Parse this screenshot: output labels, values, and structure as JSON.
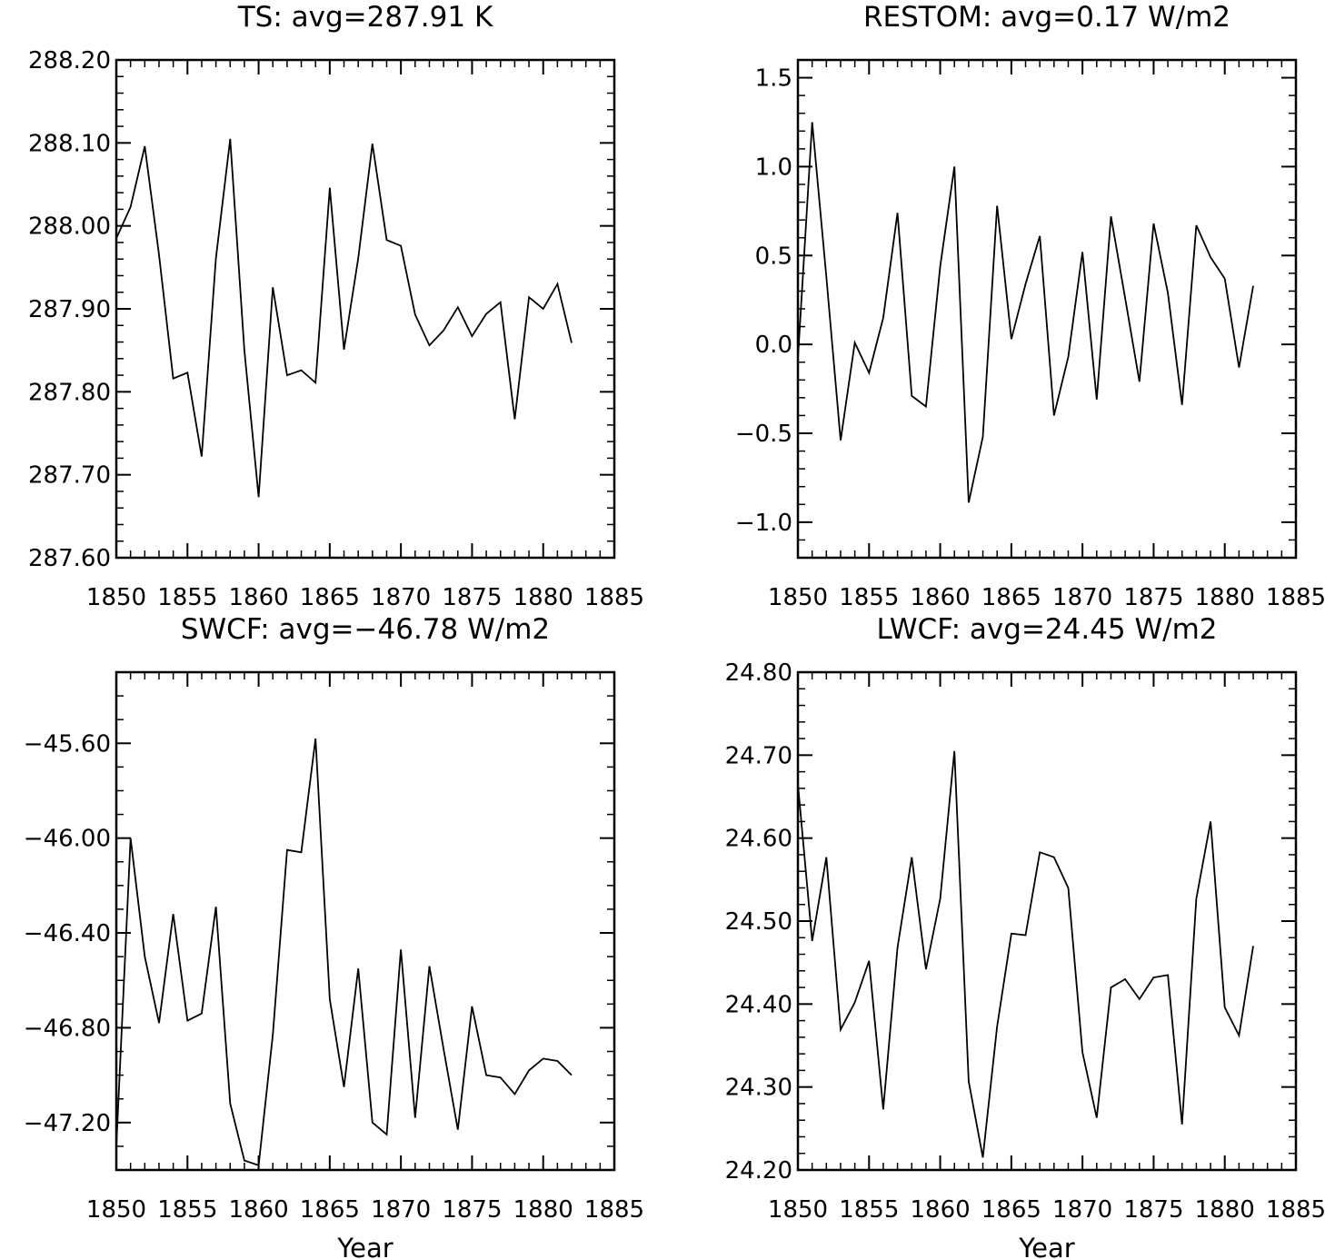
{
  "chart_data": [
    {
      "type": "line",
      "title": "TS: avg=287.91 K",
      "xlabel": "",
      "ylabel": "",
      "xlim": [
        1850,
        1885
      ],
      "ylim": [
        287.6,
        288.2
      ],
      "xticks": [
        1850,
        1855,
        1860,
        1865,
        1870,
        1875,
        1880,
        1885
      ],
      "xtick_labels": [
        "1850",
        "1855",
        "1860",
        "1865",
        "1870",
        "1875",
        "1880",
        "1885"
      ],
      "yticks": [
        287.6,
        287.7,
        287.8,
        287.9,
        288.0,
        288.1,
        288.2
      ],
      "ytick_labels": [
        "287.60",
        "287.70",
        "287.80",
        "287.90",
        "288.00",
        "288.10",
        "288.20"
      ],
      "yminor_step": 0.02,
      "x": [
        1850,
        1851,
        1852,
        1853,
        1854,
        1855,
        1856,
        1857,
        1858,
        1859,
        1860,
        1861,
        1862,
        1863,
        1864,
        1865,
        1866,
        1867,
        1868,
        1869,
        1870,
        1871,
        1872,
        1873,
        1874,
        1875,
        1876,
        1877,
        1878,
        1879,
        1880,
        1881,
        1882
      ],
      "values": [
        287.985,
        288.023,
        288.096,
        287.965,
        287.816,
        287.823,
        287.722,
        287.961,
        288.105,
        287.85,
        287.673,
        287.926,
        287.82,
        287.826,
        287.811,
        288.046,
        287.851,
        287.961,
        288.099,
        287.983,
        287.976,
        287.893,
        287.856,
        287.874,
        287.902,
        287.867,
        287.894,
        287.908,
        287.767,
        287.914,
        287.9,
        287.93,
        287.859
      ]
    },
    {
      "type": "line",
      "title": "RESTOM: avg=0.17 W/m2",
      "xlabel": "",
      "ylabel": "",
      "xlim": [
        1850,
        1885
      ],
      "ylim": [
        -1.2,
        1.6
      ],
      "xticks": [
        1850,
        1855,
        1860,
        1865,
        1870,
        1875,
        1880,
        1885
      ],
      "xtick_labels": [
        "1850",
        "1855",
        "1860",
        "1865",
        "1870",
        "1875",
        "1880",
        "1885"
      ],
      "yticks": [
        -1.0,
        -0.5,
        0.0,
        0.5,
        1.0,
        1.5
      ],
      "ytick_labels": [
        "−1.0",
        "−0.5",
        "0.0",
        "0.5",
        "1.0",
        "1.5"
      ],
      "yminor_step": 0.1,
      "x": [
        1850,
        1851,
        1852,
        1853,
        1854,
        1855,
        1856,
        1857,
        1858,
        1859,
        1860,
        1861,
        1862,
        1863,
        1864,
        1865,
        1866,
        1867,
        1868,
        1869,
        1870,
        1871,
        1872,
        1873,
        1874,
        1875,
        1876,
        1877,
        1878,
        1879,
        1880,
        1881,
        1882
      ],
      "values": [
        -0.08,
        1.25,
        0.38,
        -0.54,
        0.01,
        -0.16,
        0.15,
        0.74,
        -0.29,
        -0.35,
        0.44,
        1.0,
        -0.89,
        -0.52,
        0.78,
        0.03,
        0.34,
        0.61,
        -0.4,
        -0.07,
        0.52,
        -0.31,
        0.72,
        0.26,
        -0.21,
        0.68,
        0.29,
        -0.34,
        0.67,
        0.49,
        0.37,
        -0.13,
        0.33
      ]
    },
    {
      "type": "line",
      "title": "SWCF: avg=−46.78 W/m2",
      "xlabel": "Year",
      "ylabel": "",
      "xlim": [
        1850,
        1885
      ],
      "ylim": [
        -47.4,
        -45.3
      ],
      "xticks": [
        1850,
        1855,
        1860,
        1865,
        1870,
        1875,
        1880,
        1885
      ],
      "xtick_labels": [
        "1850",
        "1855",
        "1860",
        "1865",
        "1870",
        "1875",
        "1880",
        "1885"
      ],
      "yticks": [
        -47.2,
        -46.8,
        -46.4,
        -46.0,
        -45.6
      ],
      "ytick_labels": [
        "−47.20",
        "−46.80",
        "−46.40",
        "−46.00",
        "−45.60"
      ],
      "yminor_step": 0.1,
      "x": [
        1850,
        1851,
        1852,
        1853,
        1854,
        1855,
        1856,
        1857,
        1858,
        1859,
        1860,
        1861,
        1862,
        1863,
        1864,
        1865,
        1866,
        1867,
        1868,
        1869,
        1870,
        1871,
        1872,
        1873,
        1874,
        1875,
        1876,
        1877,
        1878,
        1879,
        1880,
        1881,
        1882
      ],
      "values": [
        -47.3,
        -46.0,
        -46.5,
        -46.78,
        -46.32,
        -46.77,
        -46.74,
        -46.29,
        -47.12,
        -47.36,
        -47.38,
        -46.83,
        -46.05,
        -46.06,
        -45.58,
        -46.68,
        -47.05,
        -46.55,
        -47.2,
        -47.25,
        -46.47,
        -47.18,
        -46.54,
        -46.89,
        -47.23,
        -46.71,
        -47.0,
        -47.01,
        -47.08,
        -46.98,
        -46.93,
        -46.94,
        -47.0
      ]
    },
    {
      "type": "line",
      "title": "LWCF: avg=24.45 W/m2",
      "xlabel": "Year",
      "ylabel": "",
      "xlim": [
        1850,
        1885
      ],
      "ylim": [
        24.2,
        24.8
      ],
      "xticks": [
        1850,
        1855,
        1860,
        1865,
        1870,
        1875,
        1880,
        1885
      ],
      "xtick_labels": [
        "1850",
        "1855",
        "1860",
        "1865",
        "1870",
        "1875",
        "1880",
        "1885"
      ],
      "yticks": [
        24.2,
        24.3,
        24.4,
        24.5,
        24.6,
        24.7,
        24.8
      ],
      "ytick_labels": [
        "24.20",
        "24.30",
        "24.40",
        "24.50",
        "24.60",
        "24.70",
        "24.80"
      ],
      "yminor_step": 0.02,
      "x": [
        1850,
        1851,
        1852,
        1853,
        1854,
        1855,
        1856,
        1857,
        1858,
        1859,
        1860,
        1861,
        1862,
        1863,
        1864,
        1865,
        1866,
        1867,
        1868,
        1869,
        1870,
        1871,
        1872,
        1873,
        1874,
        1875,
        1876,
        1877,
        1878,
        1879,
        1880,
        1881,
        1882
      ],
      "values": [
        24.665,
        24.476,
        24.577,
        24.369,
        24.402,
        24.452,
        24.273,
        24.468,
        24.577,
        24.442,
        24.527,
        24.705,
        24.307,
        24.215,
        24.373,
        24.485,
        24.483,
        24.583,
        24.577,
        24.54,
        24.342,
        24.263,
        24.42,
        24.43,
        24.406,
        24.432,
        24.435,
        24.255,
        24.527,
        24.62,
        24.396,
        24.362,
        24.47
      ]
    }
  ]
}
